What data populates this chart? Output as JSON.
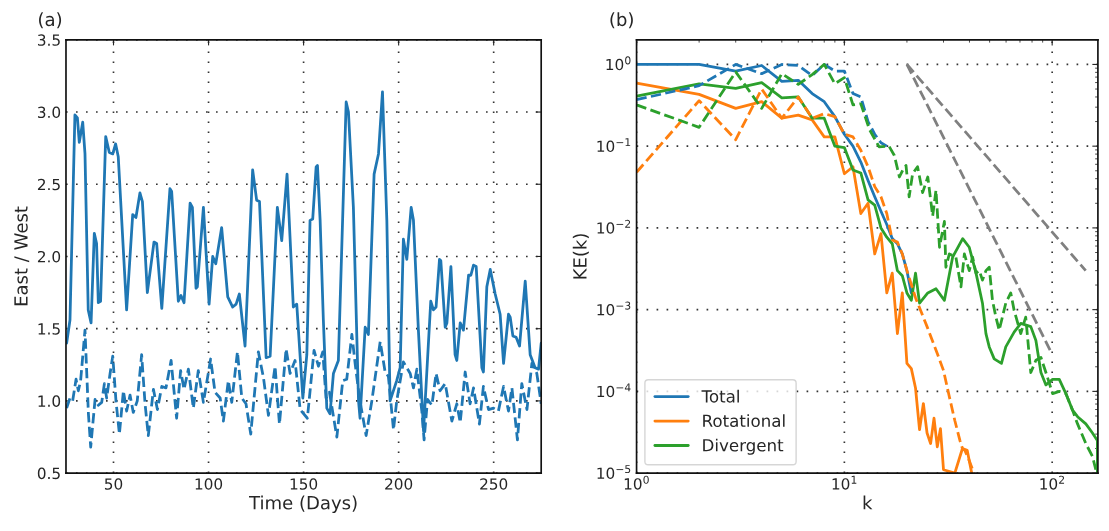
{
  "chart_data": [
    {
      "type": "line",
      "title": "(a)",
      "xlabel": "Time (Days)",
      "ylabel": "East / West",
      "xlim": [
        25,
        275
      ],
      "ylim": [
        0.5,
        3.5
      ],
      "xticks": [
        50,
        100,
        150,
        200,
        250
      ],
      "yticks": [
        0.5,
        {
          "value": 1,
          "label": "1.0"
        },
        1.5,
        {
          "value": 2,
          "label": "2.0"
        },
        2.5,
        {
          "value": 3,
          "label": "3.0"
        },
        3.5
      ],
      "grid": true,
      "legend": false,
      "series": [
        {
          "color": "#1f77b4",
          "line_style": "solid",
          "x": [
            25.35,
            27.1,
            29.7,
            31.0,
            32.0,
            33.8,
            35.0,
            36.7,
            38.2,
            39.9,
            41.1,
            42.0,
            43.2,
            45.9,
            47.8,
            49.6,
            51.1,
            52.5,
            56.9,
            60.1,
            61.8,
            63.9,
            65.2,
            67.8,
            71.3,
            72.7,
            75.4,
            79.7,
            80.6,
            84.1,
            85.5,
            87.1,
            90.3,
            91.5,
            93.4,
            94.1,
            97.3,
            100.3,
            102.2,
            103.8,
            106.9,
            110.1,
            112.7,
            114.5,
            116.2,
            119.2,
            123.2,
            125.3,
            126.8,
            130.3,
            132.4,
            136.2,
            138.5,
            141.3,
            144.6,
            146.4,
            149.6,
            151.7,
            153.4,
            154.8,
            156.6,
            157.3,
            158.7,
            160.4,
            162.2,
            163.9,
            165.7,
            168.3,
            172.4,
            173.6,
            176.2,
            178.9,
            179.7,
            182.4,
            184.1,
            187.1,
            189.4,
            191.5,
            193.8,
            195.5,
            199.0,
            200.8,
            202.5,
            204.3,
            206.6,
            207.8,
            210.4,
            213.1,
            216.9,
            218.3,
            219.7,
            221.5,
            222.2,
            224.5,
            225.4,
            227.5,
            229.7,
            230.6,
            232.4,
            234.1,
            236.8,
            238.0,
            239.4,
            240.8,
            243.8,
            244.6,
            246.4,
            248.2,
            250.8,
            253.4,
            255.2,
            257.8,
            258.7,
            260.1,
            261.8,
            263.6,
            266.6,
            269.2,
            271.8,
            273.6,
            275.0
          ],
          "values": [
            1.4,
            1.56,
            2.98,
            2.96,
            2.79,
            2.93,
            2.71,
            1.63,
            1.54,
            2.16,
            2.09,
            1.68,
            1.69,
            2.83,
            2.72,
            2.71,
            2.78,
            2.69,
            1.63,
            2.29,
            2.27,
            2.44,
            2.38,
            1.75,
            2.1,
            2.09,
            1.64,
            2.47,
            2.45,
            1.69,
            1.73,
            1.68,
            2.37,
            2.34,
            1.78,
            1.79,
            2.34,
            1.67,
            2.0,
            1.95,
            2.2,
            1.72,
            1.65,
            1.67,
            1.74,
            1.38,
            2.6,
            2.39,
            2.38,
            1.3,
            1.31,
            2.34,
            2.11,
            2.57,
            1.65,
            1.67,
            1.02,
            1.32,
            2.25,
            2.26,
            2.62,
            2.63,
            2.25,
            1.56,
            0.95,
            0.91,
            1.19,
            1.28,
            3.07,
            3.0,
            2.34,
            1.0,
            0.88,
            1.51,
            1.46,
            2.57,
            2.71,
            3.14,
            2.25,
            1.0,
            1.14,
            1.23,
            2.12,
            1.98,
            2.34,
            2.25,
            1.49,
            0.79,
            1.69,
            1.63,
            1.65,
            1.98,
            1.97,
            1.51,
            1.54,
            1.93,
            1.32,
            1.28,
            1.54,
            1.49,
            1.87,
            1.87,
            1.94,
            1.93,
            1.23,
            1.2,
            1.79,
            1.91,
            1.74,
            1.6,
            1.26,
            1.6,
            1.58,
            1.45,
            1.44,
            1.38,
            1.83,
            1.32,
            1.23,
            1.22,
            1.4
          ]
        },
        {
          "color": "#1f77b4",
          "line_style": "dashed",
          "x": [
            25.35,
            27.1,
            28.5,
            30.3,
            31.5,
            32.7,
            35.0,
            36.8,
            38.0,
            40.3,
            42.0,
            43.8,
            45.2,
            46.4,
            48.2,
            49.6,
            51.3,
            53.1,
            55.2,
            56.9,
            58.7,
            60.4,
            62.5,
            64.8,
            66.6,
            68.3,
            71.0,
            73.1,
            75.4,
            77.6,
            80.3,
            83.2,
            85.3,
            87.1,
            89.4,
            92.0,
            94.6,
            97.3,
            101.1,
            103.4,
            106.1,
            107.8,
            110.4,
            112.2,
            115.2,
            117.5,
            119.7,
            122.2,
            126.2,
            128.9,
            131.5,
            135.0,
            137.3,
            140.8,
            142.9,
            145.5,
            148.2,
            152.0,
            155.5,
            157.8,
            160.1,
            161.8,
            163.6,
            167.5,
            170.6,
            172.7,
            175.4,
            177.1,
            179.4,
            182.9,
            185.9,
            190.3,
            192.9,
            194.6,
            197.3,
            199.0,
            202.5,
            206.1,
            207.8,
            209.6,
            212.2,
            213.4,
            215.2,
            217.5,
            219.7,
            221.8,
            224.5,
            228.0,
            230.6,
            232.4,
            235.0,
            237.6,
            239.4,
            242.5,
            244.6,
            247.3,
            249.9,
            252.5,
            255.2,
            257.8,
            259.6,
            262.5,
            264.8,
            267.5,
            270.1,
            272.7,
            275.0
          ],
          "values": [
            0.95,
            1.02,
            1.0,
            1.15,
            1.07,
            1.14,
            1.49,
            0.91,
            0.68,
            1.01,
            0.97,
            0.99,
            1.12,
            1.02,
            1.19,
            1.31,
            1.0,
            0.77,
            1.07,
            0.93,
            1.04,
            0.92,
            1.0,
            1.32,
            0.98,
            0.76,
            1.08,
            0.94,
            1.1,
            1.09,
            1.28,
            0.88,
            1.21,
            1.08,
            1.22,
            0.95,
            1.21,
            0.99,
            1.29,
            1.06,
            1.02,
            0.86,
            1.14,
            0.99,
            1.34,
            1.02,
            0.98,
            0.77,
            1.34,
            1.16,
            0.9,
            1.24,
            0.84,
            1.36,
            1.19,
            1.28,
            0.94,
            0.88,
            1.35,
            1.24,
            1.34,
            1.02,
            1.06,
            0.75,
            1.14,
            1.15,
            1.46,
            1.26,
            1.02,
            0.76,
            1.0,
            1.41,
            1.2,
            1.17,
            0.8,
            1.0,
            1.27,
            1.19,
            1.09,
            1.22,
            0.93,
            0.73,
            1.01,
            0.97,
            1.19,
            1.07,
            1.12,
            0.86,
            0.98,
            0.85,
            1.2,
            0.98,
            1.09,
            0.84,
            1.1,
            0.94,
            0.95,
            0.93,
            1.1,
            0.93,
            1.09,
            0.73,
            1.12,
            0.94,
            1.26,
            1.19,
            0.98
          ]
        }
      ]
    },
    {
      "type": "line",
      "title": "(b)",
      "xlabel": "k",
      "ylabel": "KE(k)",
      "log": "xy",
      "xlim": [
        1,
        166
      ],
      "ylim": [
        1e-05,
        2
      ],
      "xticks": [
        {
          "value": 1,
          "label": "10$^{0}$"
        },
        {
          "value": 10,
          "label": "10$^{1}$"
        },
        {
          "value": 100,
          "label": "10$^{2}$"
        }
      ],
      "yticks": [
        {
          "value": 1e-05,
          "label": "10$^{−5}$"
        },
        {
          "value": 0.0001,
          "label": "10$^{−4}$"
        },
        {
          "value": 0.001,
          "label": "10$^{−3}$"
        },
        {
          "value": 0.01,
          "label": "10$^{−2}$"
        },
        {
          "value": 0.1,
          "label": "10$^{−1}$"
        },
        {
          "value": 1,
          "label": "10$^{0}$"
        }
      ],
      "grid": true,
      "legend": "bottom left",
      "series": [
        {
          "name": "Total",
          "color": "#1f77b4",
          "line_style": "solid",
          "x": [
            1,
            2,
            3,
            4,
            5,
            6,
            7,
            8,
            9,
            10,
            11,
            12,
            13,
            14,
            15,
            16,
            17,
            18,
            19,
            20,
            21
          ],
          "values": [
            1.0,
            1.0,
            0.83,
            0.97,
            0.62,
            0.64,
            0.44,
            0.35,
            0.23,
            0.14,
            0.1,
            0.064,
            0.038,
            0.024,
            0.016,
            0.011,
            0.0074,
            0.0064,
            0.0048,
            0.003,
            0.0016
          ]
        },
        {
          "name": "Rotational",
          "color": "#ff7f0e",
          "line_style": "solid",
          "x": [
            1,
            2,
            3,
            4,
            5,
            6,
            7,
            8,
            9,
            10,
            11,
            12,
            13,
            14,
            15,
            16,
            17,
            18,
            19,
            20,
            21,
            22,
            23,
            24,
            25,
            26,
            27,
            28,
            29,
            30,
            34,
            37,
            39,
            41
          ],
          "values": [
            0.59,
            0.43,
            0.29,
            0.35,
            0.22,
            0.24,
            0.21,
            0.13,
            0.13,
            0.046,
            0.056,
            0.015,
            0.02,
            0.0048,
            0.0085,
            0.0016,
            0.0028,
            0.00051,
            0.0016,
            0.00022,
            0.00019,
            0.00011,
            3.4e-05,
            7.1e-05,
            3.1e-05,
            2.3e-05,
            4.7e-05,
            2.1e-05,
            3.5e-05,
            1.1e-05,
            1e-05,
            2e-05,
            1.9e-05,
            1e-05
          ]
        },
        {
          "name": "Divergent",
          "color": "#2ca02c",
          "line_style": "solid",
          "x": [
            1,
            2,
            3,
            4,
            5,
            6,
            7,
            8,
            9,
            10,
            11,
            12,
            13,
            14,
            15,
            16,
            17,
            18,
            19,
            20,
            21,
            22,
            23,
            25.2,
            27.6,
            30.3,
            33.2,
            37.1,
            39.9,
            43,
            46.2,
            48,
            49.8,
            52.6,
            57,
            59.8,
            65.6,
            70.6,
            78.9,
            83.5,
            88.3,
            93.3,
            100.5,
            108.2,
            116.4,
            125.3,
            132.5,
            145.2,
            156.3,
            165,
            165
          ],
          "values": [
            0.41,
            0.58,
            0.51,
            0.6,
            0.39,
            0.4,
            0.22,
            0.22,
            0.1,
            0.096,
            0.051,
            0.047,
            0.022,
            0.019,
            0.01,
            0.0077,
            0.0064,
            0.003,
            0.0026,
            0.0016,
            0.0013,
            0.0028,
            0.0012,
            0.0016,
            0.0018,
            0.0013,
            0.0044,
            0.0074,
            0.0058,
            0.0028,
            0.0012,
            0.00051,
            0.00035,
            0.00025,
            0.00022,
            0.00035,
            0.00053,
            0.00068,
            0.00062,
            0.00042,
            0.00017,
            0.00012,
            0.00014,
            0.00014,
            9.4e-05,
            5.9e-05,
            4.9e-05,
            4e-05,
            3.1e-05,
            2.5e-05,
            1e-05
          ]
        },
        {
          "color": "#1f77b4",
          "line_style": "dashed",
          "x": [
            1,
            2,
            3,
            4,
            5,
            6,
            7,
            8,
            9,
            10,
            11,
            12,
            13,
            14,
            15,
            16
          ],
          "values": [
            0.37,
            0.55,
            1.0,
            0.77,
            1.0,
            0.97,
            0.73,
            1.0,
            0.83,
            0.83,
            0.44,
            0.4,
            0.2,
            0.14,
            0.11,
            0.1
          ]
        },
        {
          "color": "#ff7f0e",
          "line_style": "dashed",
          "x": [
            1,
            2,
            3,
            4,
            5,
            6,
            7,
            8,
            9,
            10,
            11,
            12,
            13,
            14,
            15,
            16,
            17,
            18,
            19,
            20,
            22,
            25,
            28,
            30,
            32,
            34,
            36,
            37,
            38,
            40,
            42
          ],
          "values": [
            0.048,
            0.36,
            0.12,
            0.5,
            0.22,
            0.4,
            0.22,
            0.25,
            0.23,
            0.14,
            0.13,
            0.089,
            0.056,
            0.032,
            0.024,
            0.015,
            0.0071,
            0.0067,
            0.0048,
            0.003,
            0.0014,
            0.00062,
            0.00029,
            0.00018,
            8.6e-05,
            4.4e-05,
            2.5e-05,
            2e-05,
            1.9e-05,
            1.4e-05,
            1e-05
          ]
        },
        {
          "color": "#2ca02c",
          "line_style": "dashed",
          "x": [
            1,
            2,
            3,
            4,
            5,
            6,
            7,
            8,
            9,
            10,
            11,
            12,
            13.2,
            14.7,
            16.4,
            17.4,
            18.4,
            19.1,
            19.8,
            20.5,
            21.3,
            22.5,
            23.8,
            25.2,
            26.6,
            27.6,
            28.7,
            30.3,
            30.8,
            32,
            34.4,
            36.4,
            37.8,
            39.9,
            41.4,
            43,
            44.6,
            46.2,
            48,
            49.8,
            51.6,
            53.6,
            55.6,
            59.8,
            63.2,
            65.6,
            70.6,
            74.6,
            78.9,
            83.5,
            88.3,
            93.3,
            100.5,
            108.2,
            116.4,
            125.3,
            132.5,
            145.2,
            156.3,
            162.2
          ],
          "values": [
            0.32,
            0.17,
            0.81,
            0.29,
            0.77,
            0.57,
            0.75,
            1.0,
            0.58,
            0.69,
            0.32,
            0.33,
            0.16,
            0.098,
            0.1,
            0.077,
            0.042,
            0.051,
            0.058,
            0.024,
            0.046,
            0.056,
            0.027,
            0.042,
            0.014,
            0.029,
            0.0058,
            0.012,
            0.0033,
            0.0048,
            0.0044,
            0.0019,
            0.0048,
            0.003,
            0.0044,
            0.0028,
            0.003,
            0.0023,
            0.003,
            0.0033,
            0.0013,
            0.00081,
            0.00056,
            0.0012,
            0.0016,
            0.00098,
            0.00051,
            0.00081,
            0.00017,
            0.00024,
            0.00026,
            0.00017,
            9.4e-05,
            0.0001,
            9.4e-05,
            5.9e-05,
            4e-05,
            2.3e-05,
            1.6e-05,
            1.1e-05
          ]
        },
        {
          "color": "#808080",
          "line_style": "dashed",
          "x": [
            20,
            145
          ],
          "values": [
            1,
            0.003
          ]
        },
        {
          "color": "#808080",
          "line_style": "dashed",
          "x": [
            20,
            99
          ],
          "values": [
            1,
            0.0003
          ]
        }
      ]
    }
  ]
}
